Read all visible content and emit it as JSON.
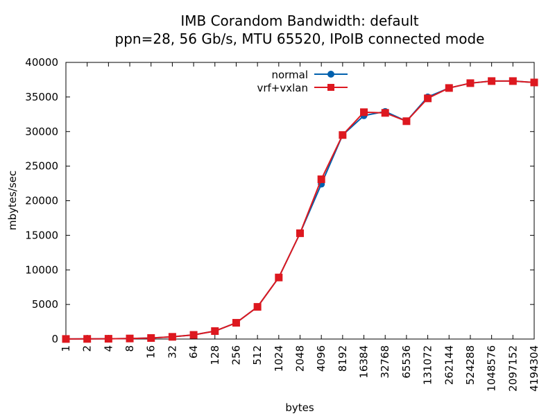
{
  "chart_data": {
    "type": "line",
    "title": "IMB Corandom Bandwidth: default",
    "subtitle": "ppn=28, 56 Gb/s, MTU 65520, IPoIB connected mode",
    "xlabel": "bytes",
    "ylabel": "mbytes/sec",
    "ylim": [
      0,
      40000
    ],
    "yticks": [
      0,
      5000,
      10000,
      15000,
      20000,
      25000,
      30000,
      35000,
      40000
    ],
    "categories": [
      "1",
      "2",
      "4",
      "8",
      "16",
      "32",
      "64",
      "128",
      "256",
      "512",
      "1024",
      "2048",
      "4096",
      "8192",
      "16384",
      "32768",
      "65536",
      "131072",
      "262144",
      "524288",
      "1048576",
      "2097152",
      "4194304"
    ],
    "grid": false,
    "legend_position": "top-center",
    "series": [
      {
        "name": "normal",
        "color": "#0060ad",
        "marker": "circle",
        "values": [
          10,
          20,
          40,
          80,
          150,
          320,
          600,
          1150,
          2350,
          4650,
          8900,
          15300,
          22400,
          29500,
          32300,
          32900,
          31500,
          35000,
          36300,
          37000,
          37300,
          37300,
          37100
        ]
      },
      {
        "name": "vrf+vxlan",
        "color": "#dd181f",
        "marker": "square",
        "values": [
          10,
          20,
          40,
          80,
          150,
          320,
          600,
          1150,
          2350,
          4650,
          8900,
          15300,
          23100,
          29500,
          32800,
          32700,
          31500,
          34800,
          36300,
          37000,
          37300,
          37300,
          37100
        ]
      }
    ]
  }
}
